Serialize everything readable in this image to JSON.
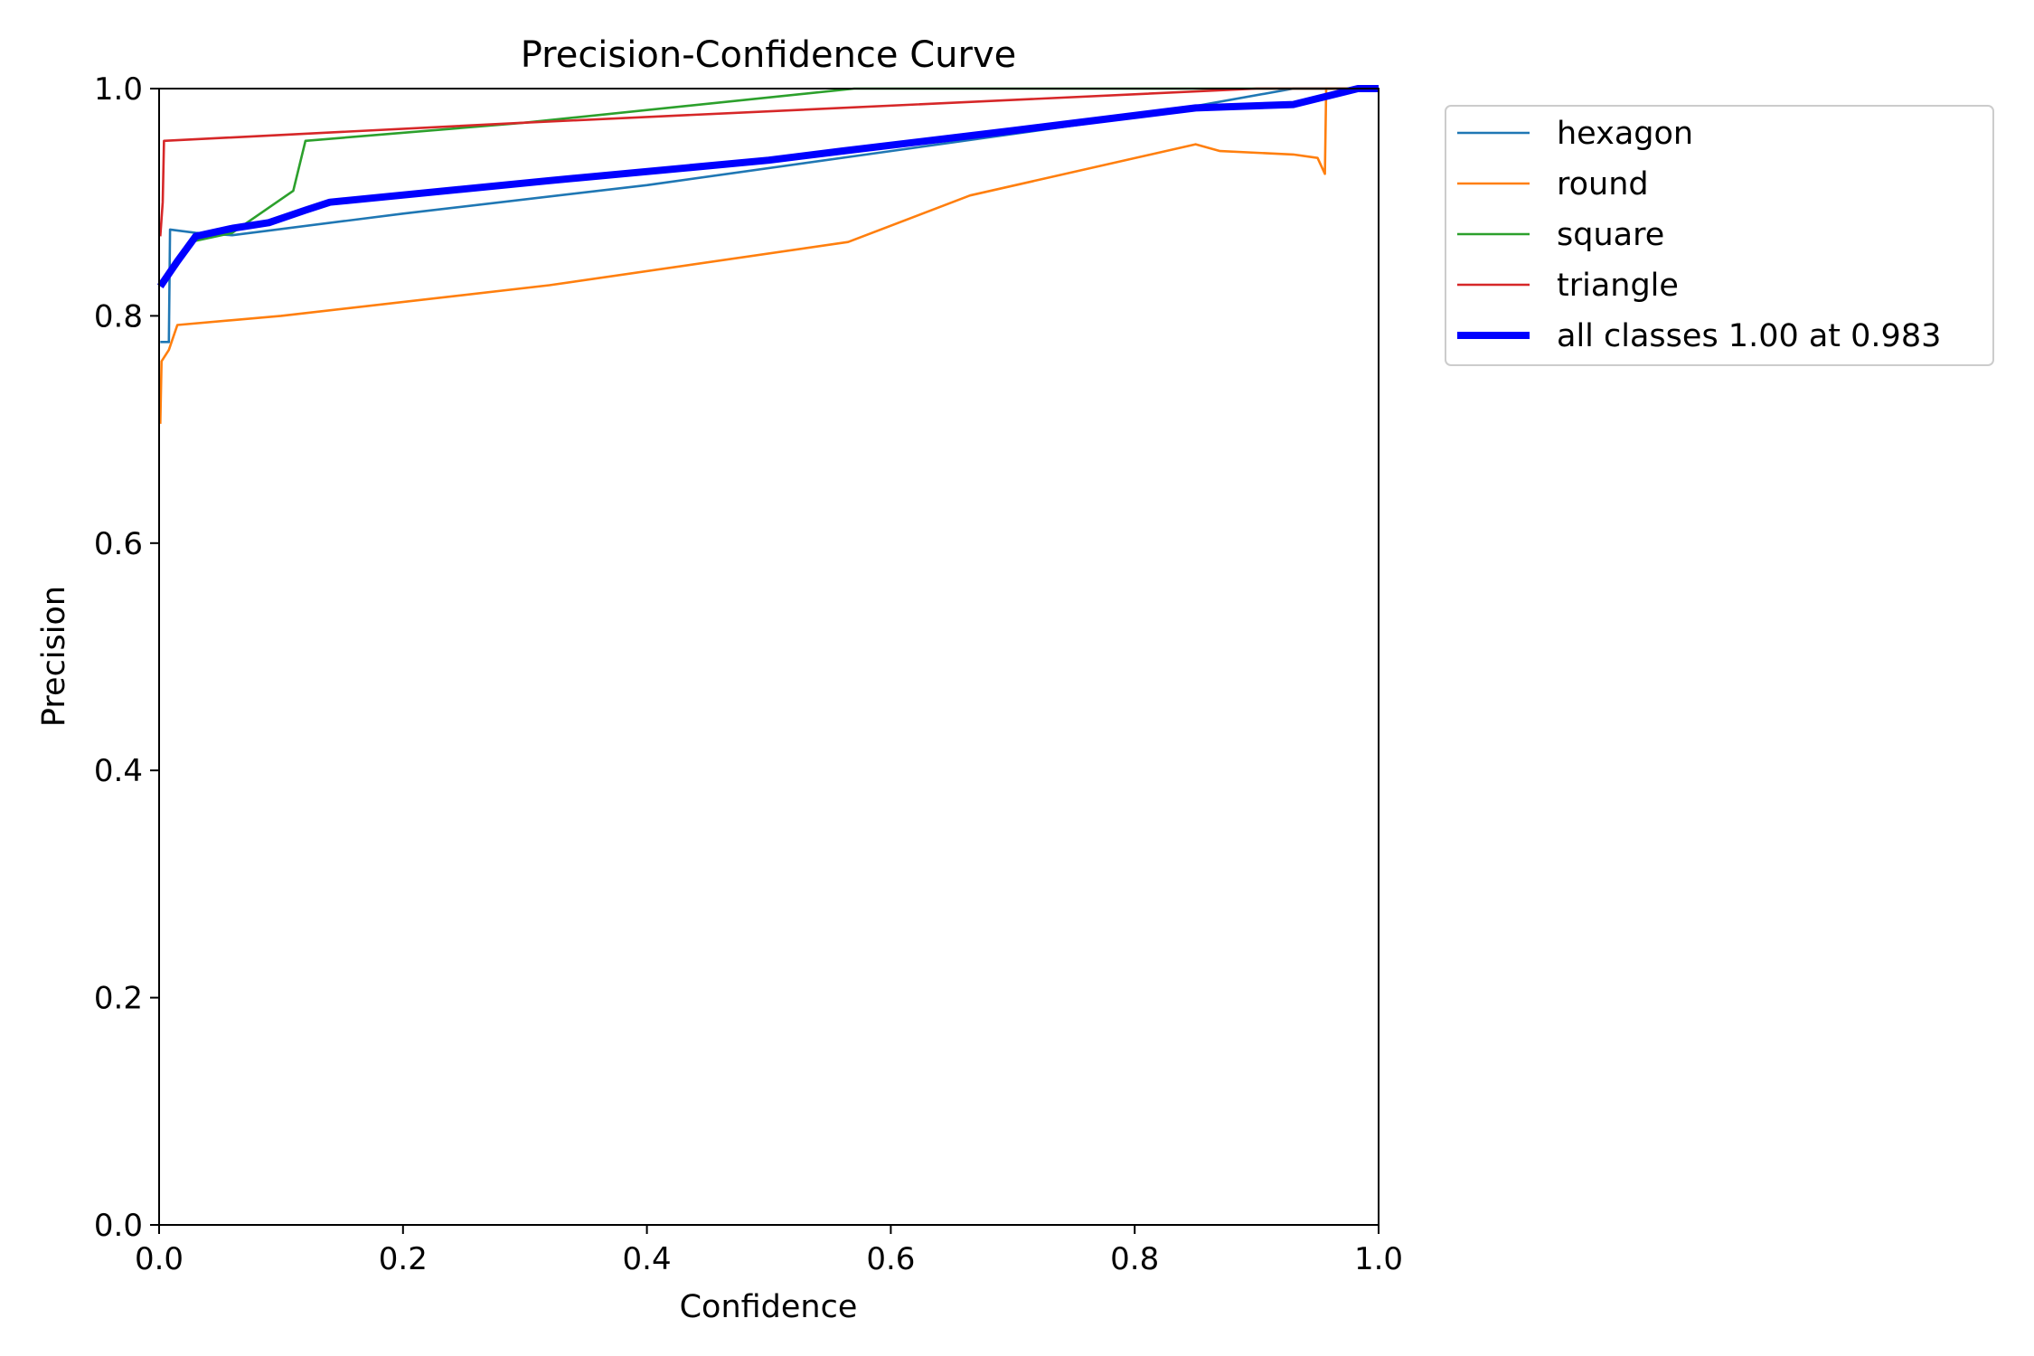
{
  "chart_data": {
    "type": "line",
    "title": "Precision-Confidence Curve",
    "xlabel": "Confidence",
    "ylabel": "Precision",
    "xlim": [
      0,
      1
    ],
    "ylim": [
      0,
      1
    ],
    "xticks": [
      "0.0",
      "0.2",
      "0.4",
      "0.6",
      "0.8",
      "1.0"
    ],
    "yticks": [
      "0.0",
      "0.2",
      "0.4",
      "0.6",
      "0.8",
      "1.0"
    ],
    "grid": false,
    "legend_position": "outside-top-right",
    "series": [
      {
        "name": "hexagon",
        "color": "#1f77b4",
        "width": "thin",
        "points": [
          [
            0.001,
            0.777
          ],
          [
            0.008,
            0.777
          ],
          [
            0.009,
            0.876
          ],
          [
            0.03,
            0.873
          ],
          [
            0.06,
            0.871
          ],
          [
            0.2,
            0.89
          ],
          [
            0.4,
            0.915
          ],
          [
            0.6,
            0.945
          ],
          [
            0.8,
            0.975
          ],
          [
            0.93,
            1.0
          ],
          [
            1.0,
            1.0
          ]
        ]
      },
      {
        "name": "round",
        "color": "#ff7f0e",
        "width": "thin",
        "points": [
          [
            0.001,
            0.705
          ],
          [
            0.002,
            0.76
          ],
          [
            0.008,
            0.77
          ],
          [
            0.015,
            0.792
          ],
          [
            0.1,
            0.8
          ],
          [
            0.32,
            0.827
          ],
          [
            0.565,
            0.865
          ],
          [
            0.665,
            0.906
          ],
          [
            0.85,
            0.951
          ],
          [
            0.86,
            0.948
          ],
          [
            0.87,
            0.945
          ],
          [
            0.93,
            0.942
          ],
          [
            0.95,
            0.939
          ],
          [
            0.956,
            0.925
          ],
          [
            0.957,
            1.0
          ],
          [
            1.0,
            1.0
          ]
        ]
      },
      {
        "name": "square",
        "color": "#2ca02c",
        "width": "thin",
        "points": [
          [
            0.03,
            0.866
          ],
          [
            0.06,
            0.873
          ],
          [
            0.11,
            0.91
          ],
          [
            0.12,
            0.954
          ],
          [
            0.3,
            0.97
          ],
          [
            0.57,
            1.0
          ],
          [
            1.0,
            1.0
          ]
        ]
      },
      {
        "name": "triangle",
        "color": "#d62728",
        "width": "thin",
        "points": [
          [
            0.001,
            0.87
          ],
          [
            0.003,
            0.9
          ],
          [
            0.004,
            0.954
          ],
          [
            0.3,
            0.97
          ],
          [
            0.9,
            1.0
          ],
          [
            1.0,
            1.0
          ]
        ]
      },
      {
        "name": "all classes 1.00 at 0.983",
        "color": "#0000ff",
        "width": "thick",
        "points": [
          [
            0.001,
            0.826
          ],
          [
            0.015,
            0.848
          ],
          [
            0.03,
            0.87
          ],
          [
            0.06,
            0.877
          ],
          [
            0.09,
            0.882
          ],
          [
            0.12,
            0.893
          ],
          [
            0.14,
            0.9
          ],
          [
            0.32,
            0.919
          ],
          [
            0.5,
            0.937
          ],
          [
            0.56,
            0.945
          ],
          [
            0.7,
            0.963
          ],
          [
            0.85,
            0.983
          ],
          [
            0.93,
            0.986
          ],
          [
            0.983,
            1.0
          ],
          [
            1.0,
            1.0
          ]
        ]
      }
    ]
  }
}
